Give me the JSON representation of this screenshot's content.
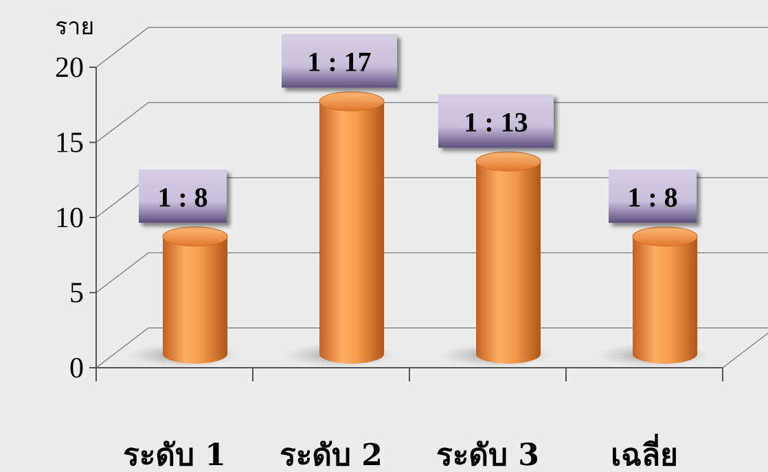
{
  "chart_data": {
    "type": "bar",
    "style": "3d-cylinder",
    "y_unit": "ราย",
    "categories": [
      "ระดับ 1",
      "ระดับ 2",
      "ระดับ 3",
      "เฉลี่ย"
    ],
    "values": [
      8,
      17,
      13,
      8
    ],
    "data_labels": [
      "1 : 8",
      "1 : 17",
      "1 : 13",
      "1 : 8"
    ],
    "ylim": [
      0,
      20
    ],
    "yticks": [
      0,
      5,
      10,
      15,
      20
    ],
    "grid": true,
    "legend": "none"
  },
  "colors": {
    "bar": "#f39a4a",
    "bar_dark": "#c8642a",
    "label_box": "#cdc3df",
    "label_box_dark": "#6b5b86",
    "grid": "#8a8a8a",
    "background": "#ececec"
  }
}
